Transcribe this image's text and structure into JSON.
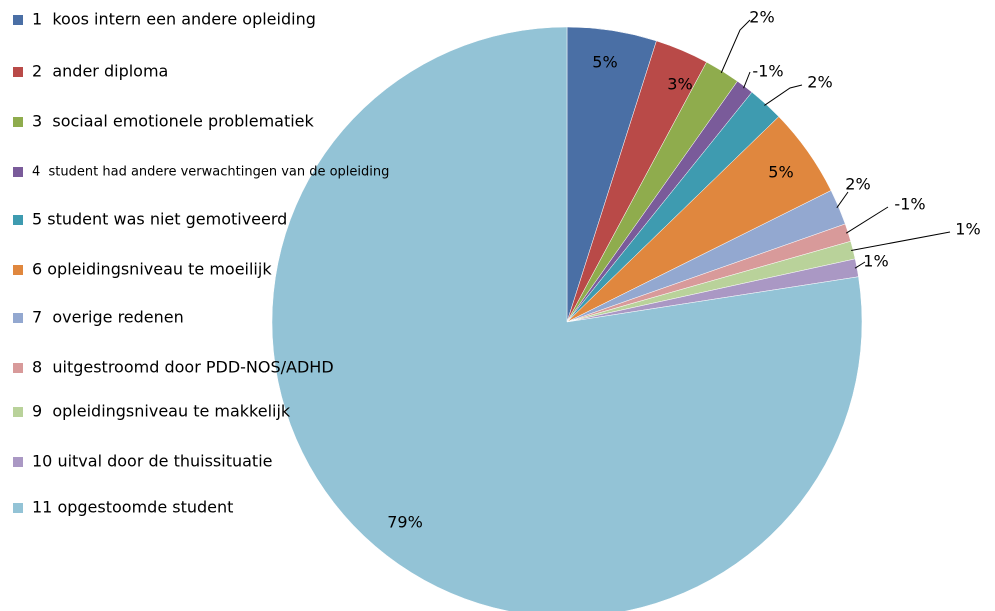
{
  "chart_data": {
    "type": "pie",
    "categories": [
      "1  koos intern een andere opleiding",
      "2  ander diploma",
      "3  sociaal emotionele problematiek",
      "4  student had andere verwachtingen van de opleiding",
      "5 student was niet gemotiveerd",
      "6 opleidingsniveau te moeilijk",
      "7  overige redenen",
      "8  uitgestroomd door PDD-NOS/ADHD",
      "9  opleidingsniveau te makkelijk",
      "10 uitval door de thuissituatie",
      "11 opgestoomde student"
    ],
    "values": [
      5,
      3,
      2,
      -1,
      2,
      5,
      2,
      -1,
      1,
      1,
      79
    ],
    "colors": [
      "#4a6fa5",
      "#b94a48",
      "#8fac4d",
      "#7a5b9a",
      "#3e9bb0",
      "#e0873e",
      "#93a8d0",
      "#d89a9a",
      "#b9d29a",
      "#aa98c4",
      "#93c3d6"
    ],
    "legend": "left"
  }
}
